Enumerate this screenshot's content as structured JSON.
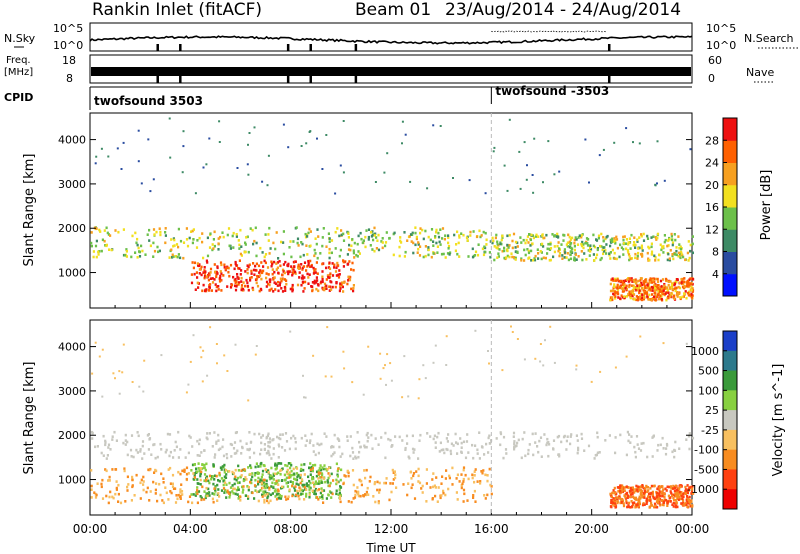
{
  "header": {
    "title": "Rankin Inlet (fitACF)",
    "beam": "Beam 01",
    "date_range": "23/Aug/2014 - 24/Aug/2014"
  },
  "strips": {
    "nsky_label": "N.Sky",
    "nsky_ticks": [
      "10^5",
      "10^0"
    ],
    "nsearch_label": "N.Search",
    "nsearch_ticks": [
      "10^5",
      "10^0"
    ],
    "freq_label": "Freq.",
    "freq_unit": "[MHz]",
    "freq_ticks": [
      "18",
      "8"
    ],
    "nave_label": "Nave",
    "nave_ticks": [
      "60",
      "0"
    ],
    "cpid_label": "CPID",
    "cpid_segments": [
      {
        "label": "twofsound 3503",
        "start_hour": 0
      },
      {
        "label": "twofsound -3503",
        "start_hour": 16
      }
    ],
    "marker_hours": [
      2.7,
      3.6,
      7.9,
      8.8,
      10.6,
      20.7
    ]
  },
  "chart_data": [
    {
      "type": "heatmap",
      "name": "power",
      "ylabel": "Slant Range [km]",
      "xlabel": "",
      "xlim": [
        0,
        24
      ],
      "ylim": [
        200,
        4600
      ],
      "x_ticks": [
        "00:00",
        "04:00",
        "08:00",
        "12:00",
        "16:00",
        "20:00",
        "00:00"
      ],
      "y_ticks": [
        1000,
        2000,
        3000,
        4000
      ],
      "colorbar": {
        "label": "Power [dB]",
        "ticks": [
          "4",
          "8",
          "12",
          "16",
          "20",
          "24",
          "28"
        ],
        "colors": [
          "#0010ff",
          "#2a4ca0",
          "#3d8a65",
          "#6cc04a",
          "#f2e020",
          "#f7a020",
          "#ff6000",
          "#ee1010"
        ]
      },
      "features": [
        {
          "t0": 0.0,
          "t1": 16.0,
          "r0": 1350,
          "r1": 2050,
          "level": 16
        },
        {
          "t0": 4.0,
          "t1": 10.5,
          "r0": 600,
          "r1": 1300,
          "level": 28
        },
        {
          "t0": 16.0,
          "t1": 24.0,
          "r0": 1300,
          "r1": 1900,
          "level": 16
        },
        {
          "t0": 20.7,
          "t1": 24.0,
          "r0": 400,
          "r1": 900,
          "level": 24
        }
      ]
    },
    {
      "type": "heatmap",
      "name": "velocity",
      "ylabel": "Slant Range [km]",
      "xlabel": "Time UT",
      "xlim": [
        0,
        24
      ],
      "ylim": [
        200,
        4600
      ],
      "x_ticks": [
        "00:00",
        "04:00",
        "08:00",
        "12:00",
        "16:00",
        "20:00",
        "00:00"
      ],
      "y_ticks": [
        1000,
        2000,
        3000,
        4000
      ],
      "colorbar": {
        "label": "Velocity [m s^-1]",
        "ticks": [
          "1000",
          "500",
          "100",
          "25",
          "-25",
          "-100",
          "-500",
          "-1000"
        ],
        "colors": [
          "#1b3fc8",
          "#2d7a8c",
          "#3a9a3a",
          "#88d040",
          "#c8c8c0",
          "#f8c060",
          "#f88c20",
          "#ff4010",
          "#ee0000"
        ]
      },
      "features": [
        {
          "t0": 0.0,
          "t1": 24.0,
          "r0": 1500,
          "r1": 2100,
          "level": 0
        },
        {
          "t0": 4.0,
          "t1": 10.0,
          "r0": 600,
          "r1": 1400,
          "level": 100
        },
        {
          "t0": 0.0,
          "t1": 16.0,
          "r0": 500,
          "r1": 1300,
          "level": -100
        },
        {
          "t0": 20.7,
          "t1": 24.0,
          "r0": 400,
          "r1": 900,
          "level": -500
        }
      ]
    }
  ]
}
